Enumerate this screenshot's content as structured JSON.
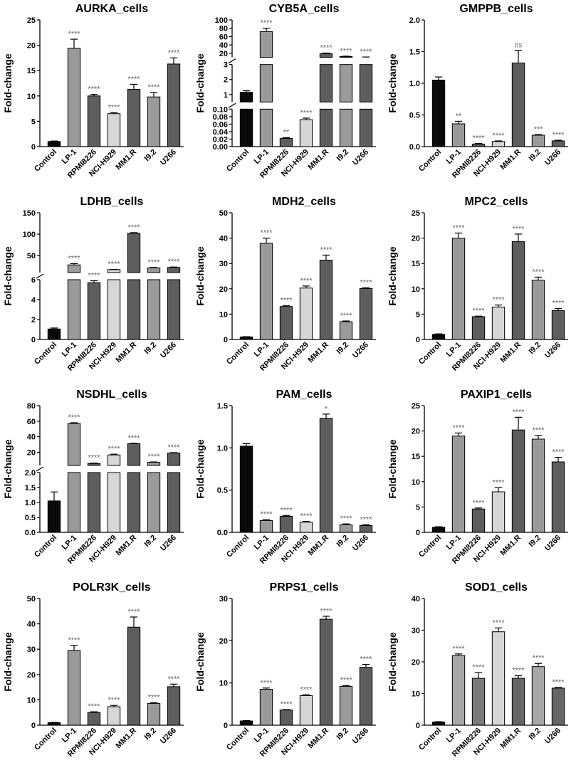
{
  "figure": {
    "colors": {
      "black": "#0a0a0a",
      "mid": "#9a9a9a",
      "dark": "#5e5e5e",
      "light": "#d6d6d6",
      "sig": "#666666"
    }
  },
  "chart_data": [
    {
      "type": "bar",
      "title": "AURKA_cells",
      "ylabel": "Fold-change",
      "categories": [
        "Control",
        "LP-1",
        "RPMI8226",
        "NCI-H929",
        "MM1.R",
        "I9.2",
        "U266"
      ],
      "values": [
        1.0,
        19.4,
        10.0,
        6.5,
        11.3,
        9.8,
        16.3
      ],
      "errors": [
        0.1,
        1.8,
        0.3,
        0.2,
        1.0,
        0.9,
        1.2
      ],
      "significance": [
        "",
        "****",
        "****",
        "****",
        "****",
        "****",
        "****"
      ],
      "colors": [
        "#0a0a0a",
        "#9a9a9a",
        "#5e5e5e",
        "#d6d6d6",
        "#5e5e5e",
        "#9a9a9a",
        "#5e5e5e"
      ],
      "ylim": [
        0,
        25
      ],
      "yticks": [
        0,
        5,
        10,
        15,
        20,
        25
      ]
    },
    {
      "type": "bar",
      "title": "CYB5A_cells",
      "ylabel": "Fold-change",
      "categories": [
        "Control",
        "LP-1",
        "RPMI8226",
        "NCI-H929",
        "MM1.R",
        "I9.2",
        "U266"
      ],
      "values": [
        1.15,
        72,
        0.022,
        0.072,
        19,
        12,
        10
      ],
      "errors": [
        0.1,
        8,
        0.002,
        0.004,
        1.5,
        1.0,
        1.0
      ],
      "significance": [
        "",
        "****",
        "**",
        "****",
        "****",
        "****",
        "****"
      ],
      "colors": [
        "#0a0a0a",
        "#9a9a9a",
        "#5e5e5e",
        "#d6d6d6",
        "#5e5e5e",
        "#9a9a9a",
        "#5e5e5e"
      ],
      "ylim": [
        0,
        100
      ],
      "segments": [
        {
          "range": [
            0,
            0.1
          ],
          "ticks": [
            0.0,
            0.02,
            0.04,
            0.06,
            0.08,
            0.1
          ]
        },
        {
          "range": [
            0.5,
            3
          ],
          "ticks": [
            1,
            2,
            3
          ]
        },
        {
          "range": [
            10,
            100
          ],
          "ticks": [
            20,
            40,
            60,
            80,
            100
          ]
        }
      ],
      "tick_labels": [
        "0.00",
        "0.02",
        "0.04",
        "0.06",
        "0.08",
        "0.10",
        "1",
        "2",
        "3",
        "20",
        "40",
        "60",
        "80",
        "100"
      ]
    },
    {
      "type": "bar",
      "title": "GMPPB_cells",
      "ylabel": "Fold-change",
      "categories": [
        "Control",
        "LP-1",
        "RPMI8226",
        "NCI-H929",
        "MM1.R",
        "I9.2",
        "U266"
      ],
      "values": [
        1.05,
        0.36,
        0.04,
        0.08,
        1.32,
        0.18,
        0.09
      ],
      "errors": [
        0.05,
        0.04,
        0.01,
        0.01,
        0.2,
        0.01,
        0.01
      ],
      "significance": [
        "",
        "**",
        "****",
        "****",
        "ns",
        "***",
        "****"
      ],
      "colors": [
        "#0a0a0a",
        "#9a9a9a",
        "#5e5e5e",
        "#d6d6d6",
        "#5e5e5e",
        "#9a9a9a",
        "#5e5e5e"
      ],
      "ylim": [
        0,
        2.0
      ],
      "yticks": [
        0.0,
        0.5,
        1.0,
        1.5,
        2.0
      ],
      "tick_labels": [
        "0.0",
        "0.5",
        "1.0",
        "1.5",
        "2.0"
      ]
    },
    {
      "type": "bar",
      "title": "LDHB_cells",
      "ylabel": "Fold-change",
      "categories": [
        "Control",
        "LP-1",
        "RPMI8226",
        "NCI-H929",
        "MM1.R",
        "I9.2",
        "U266"
      ],
      "values": [
        1.05,
        28,
        5.7,
        17,
        102,
        21,
        22
      ],
      "errors": [
        0.1,
        3,
        0.2,
        0.5,
        1.5,
        1.0,
        1.0
      ],
      "significance": [
        "",
        "****",
        "****",
        "****",
        "****",
        "****",
        "****"
      ],
      "colors": [
        "#0a0a0a",
        "#9a9a9a",
        "#5e5e5e",
        "#d6d6d6",
        "#5e5e5e",
        "#9a9a9a",
        "#5e5e5e"
      ],
      "ylim": [
        0,
        150
      ],
      "segments": [
        {
          "range": [
            0,
            6
          ],
          "ticks": [
            0,
            2,
            4,
            6
          ]
        },
        {
          "range": [
            10,
            150
          ],
          "ticks": [
            50,
            100,
            150
          ]
        }
      ],
      "tick_labels": [
        "0",
        "2",
        "4",
        "6",
        "50",
        "100",
        "150"
      ]
    },
    {
      "type": "bar",
      "title": "MDH2_cells",
      "ylabel": "Fold-change",
      "categories": [
        "Control",
        "LP-1",
        "RPMI8226",
        "NCI-H929",
        "MM1.R",
        "I9.2",
        "U266"
      ],
      "values": [
        1.0,
        38,
        13,
        20.3,
        31.3,
        7,
        20.1
      ],
      "errors": [
        0.1,
        2,
        0.3,
        0.8,
        2,
        0.3,
        0.3
      ],
      "significance": [
        "",
        "****",
        "****",
        "****",
        "****",
        "****",
        "****"
      ],
      "colors": [
        "#0a0a0a",
        "#9a9a9a",
        "#5e5e5e",
        "#d6d6d6",
        "#5e5e5e",
        "#9a9a9a",
        "#5e5e5e"
      ],
      "ylim": [
        0,
        50
      ],
      "yticks": [
        0,
        10,
        20,
        30,
        40,
        50
      ]
    },
    {
      "type": "bar",
      "title": "MPC2_cells",
      "ylabel": "Fold-change",
      "categories": [
        "Control",
        "LP-1",
        "RPMI8226",
        "NCI-H929",
        "MM1.R",
        "I9.2",
        "U266"
      ],
      "values": [
        1.0,
        20,
        4.5,
        6.4,
        19.3,
        11.7,
        5.7
      ],
      "errors": [
        0.1,
        1,
        0.1,
        0.4,
        1.5,
        0.6,
        0.4
      ],
      "significance": [
        "",
        "****",
        "****",
        "****",
        "****",
        "****",
        "****"
      ],
      "colors": [
        "#0a0a0a",
        "#9a9a9a",
        "#5e5e5e",
        "#d6d6d6",
        "#5e5e5e",
        "#9a9a9a",
        "#5e5e5e"
      ],
      "ylim": [
        0,
        25
      ],
      "yticks": [
        0,
        5,
        10,
        15,
        20,
        25
      ]
    },
    {
      "type": "bar",
      "title": "NSDHL_cells",
      "ylabel": "Fold-change",
      "categories": [
        "Control",
        "LP-1",
        "RPMI8226",
        "NCI-H929",
        "MM1.R",
        "I9.2",
        "U266"
      ],
      "values": [
        1.05,
        57,
        5.5,
        16.5,
        31,
        7,
        19
      ],
      "errors": [
        0.3,
        1,
        0.5,
        1,
        0.5,
        0.5,
        0.5
      ],
      "significance": [
        "",
        "****",
        "****",
        "****",
        "****",
        "****",
        "****"
      ],
      "colors": [
        "#0a0a0a",
        "#9a9a9a",
        "#5e5e5e",
        "#d6d6d6",
        "#5e5e5e",
        "#9a9a9a",
        "#5e5e5e"
      ],
      "ylim": [
        0,
        80
      ],
      "segments": [
        {
          "range": [
            0,
            2.0
          ],
          "ticks": [
            0.0,
            0.5,
            1.0,
            1.5,
            2.0
          ]
        },
        {
          "range": [
            3,
            80
          ],
          "ticks": [
            20,
            40,
            60,
            80
          ]
        }
      ],
      "tick_labels": [
        "0.0",
        "0.5",
        "1.0",
        "1.5",
        "2.0",
        "20",
        "40",
        "60",
        "80"
      ]
    },
    {
      "type": "bar",
      "title": "PAM_cells",
      "ylabel": "Fold-change",
      "categories": [
        "Control",
        "LP-1",
        "RPMI8226",
        "NCI-H929",
        "MM1.R",
        "I9.2",
        "U266"
      ],
      "values": [
        1.02,
        0.14,
        0.19,
        0.12,
        1.35,
        0.09,
        0.08
      ],
      "errors": [
        0.03,
        0.01,
        0.01,
        0.01,
        0.05,
        0.01,
        0.01
      ],
      "significance": [
        "",
        "****",
        "****",
        "****",
        "*",
        "****",
        "****"
      ],
      "colors": [
        "#0a0a0a",
        "#9a9a9a",
        "#5e5e5e",
        "#d6d6d6",
        "#5e5e5e",
        "#9a9a9a",
        "#5e5e5e"
      ],
      "ylim": [
        0,
        1.5
      ],
      "yticks": [
        0.0,
        0.5,
        1.0,
        1.5
      ],
      "tick_labels": [
        "0.0",
        "0.5",
        "1.0",
        "1.5"
      ]
    },
    {
      "type": "bar",
      "title": "PAXIP1_cells",
      "ylabel": "Fold-change",
      "categories": [
        "Control",
        "LP-1",
        "RPMI8226",
        "NCI-H929",
        "MM1.R",
        "I9.2",
        "U266"
      ],
      "values": [
        1.0,
        19,
        4.6,
        8,
        20.2,
        18.4,
        13.9
      ],
      "errors": [
        0.1,
        0.6,
        0.2,
        0.8,
        2.5,
        0.7,
        0.9
      ],
      "significance": [
        "",
        "****",
        "****",
        "****",
        "****",
        "****",
        "****"
      ],
      "colors": [
        "#0a0a0a",
        "#9a9a9a",
        "#5e5e5e",
        "#d6d6d6",
        "#5e5e5e",
        "#9a9a9a",
        "#5e5e5e"
      ],
      "ylim": [
        0,
        25
      ],
      "yticks": [
        0,
        5,
        10,
        15,
        20,
        25
      ]
    },
    {
      "type": "bar",
      "title": "POLR3K_cells",
      "ylabel": "Fold-change",
      "categories": [
        "Control",
        "LP-1",
        "RPMI8226",
        "NCI-H929",
        "MM1.R",
        "I9.2",
        "U266"
      ],
      "values": [
        1.0,
        29.5,
        5,
        7.3,
        38.7,
        8.6,
        15.2
      ],
      "errors": [
        0.1,
        2,
        0.3,
        0.5,
        4,
        0.3,
        1
      ],
      "significance": [
        "",
        "****",
        "****",
        "****",
        "****",
        "****",
        "****"
      ],
      "colors": [
        "#0a0a0a",
        "#9a9a9a",
        "#5e5e5e",
        "#d6d6d6",
        "#5e5e5e",
        "#9a9a9a",
        "#5e5e5e"
      ],
      "ylim": [
        0,
        50
      ],
      "yticks": [
        0,
        10,
        20,
        30,
        40,
        50
      ]
    },
    {
      "type": "bar",
      "title": "PRPS1_cells",
      "ylabel": "Fold-change",
      "categories": [
        "Control",
        "LP-1",
        "RPMI8226",
        "NCI-H929",
        "MM1.R",
        "I9.2",
        "U266"
      ],
      "values": [
        1.0,
        8.5,
        3.6,
        7,
        25.1,
        9.2,
        13.7
      ],
      "errors": [
        0.1,
        0.3,
        0.1,
        0.2,
        0.7,
        0.2,
        0.7
      ],
      "significance": [
        "",
        "****",
        "****",
        "****",
        "****",
        "****",
        "****"
      ],
      "colors": [
        "#0a0a0a",
        "#9a9a9a",
        "#5e5e5e",
        "#d6d6d6",
        "#5e5e5e",
        "#9a9a9a",
        "#5e5e5e"
      ],
      "ylim": [
        0,
        30
      ],
      "yticks": [
        0,
        10,
        20,
        30
      ]
    },
    {
      "type": "bar",
      "title": "SOD1_cells",
      "ylabel": "Fold-change",
      "categories": [
        "Control",
        "LP-1",
        "RPMI8226",
        "NCI-H929",
        "MM1.R",
        "I9.2",
        "U266"
      ],
      "values": [
        1.0,
        22,
        14.8,
        29.5,
        14.8,
        18.5,
        11.7
      ],
      "errors": [
        0.1,
        0.5,
        1.8,
        1.2,
        0.8,
        1,
        0.2
      ],
      "significance": [
        "",
        "****",
        "****",
        "****",
        "****",
        "****",
        "****"
      ],
      "colors": [
        "#0a0a0a",
        "#a8a8a8",
        "#7a7a7a",
        "#d6d6d6",
        "#666666",
        "#a8a8a8",
        "#666666"
      ],
      "ylim": [
        0,
        40
      ],
      "yticks": [
        0,
        10,
        20,
        30,
        40
      ]
    }
  ]
}
